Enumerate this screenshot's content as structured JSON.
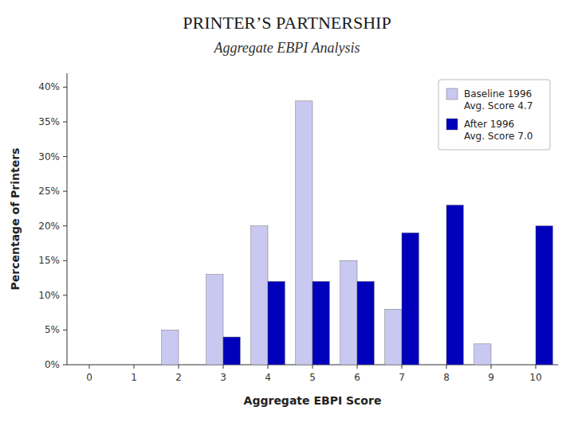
{
  "chart_data": {
    "type": "bar",
    "title": "PRINTER’S PARTNERSHIP",
    "subtitle": "Aggregate EBPI Analysis",
    "xlabel": "Aggregate EBPI Score",
    "ylabel": "Percentage of Printers",
    "categories": [
      0,
      1,
      2,
      3,
      4,
      5,
      6,
      7,
      8,
      9,
      10
    ],
    "series": [
      {
        "name": "Baseline 1996\nAvg. Score 4.7",
        "color": "#C8C8F0",
        "values": [
          0,
          0,
          5,
          13,
          20,
          38,
          15,
          8,
          0,
          3,
          0
        ]
      },
      {
        "name": "After 1996\nAvg. Score 7.0",
        "color": "#0000BB",
        "values": [
          0,
          0,
          0,
          4,
          12,
          12,
          12,
          19,
          23,
          0,
          20
        ]
      }
    ],
    "ylim": [
      0,
      42
    ],
    "yticks": [
      {
        "value": 0,
        "label": "0%"
      },
      {
        "value": 5,
        "label": "5%"
      },
      {
        "value": 10,
        "label": "10%"
      },
      {
        "value": 15,
        "label": "15%"
      },
      {
        "value": 20,
        "label": "20%"
      },
      {
        "value": 25,
        "label": "25%"
      },
      {
        "value": 30,
        "label": "30%"
      },
      {
        "value": 35,
        "label": "35%"
      },
      {
        "value": 40,
        "label": "40%"
      }
    ],
    "grid": false,
    "legend": "upper right"
  }
}
